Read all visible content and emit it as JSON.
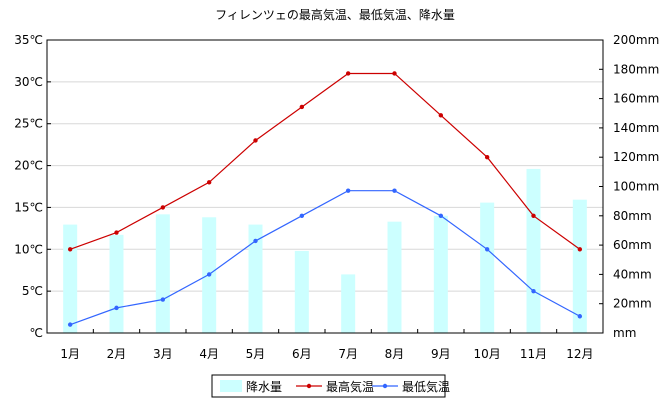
{
  "chart_data": {
    "type": "bar+line",
    "title": "フィレンツェの最高気温、最低気温、降水量",
    "categories": [
      "1月",
      "2月",
      "3月",
      "4月",
      "5月",
      "6月",
      "7月",
      "8月",
      "9月",
      "10月",
      "11月",
      "12月"
    ],
    "series": [
      {
        "name": "降水量",
        "type": "bar",
        "axis": "right",
        "unit": "mm",
        "color": "#ccffff",
        "values": [
          74,
          67,
          81,
          79,
          74,
          56,
          40,
          76,
          80,
          89,
          112,
          91
        ]
      },
      {
        "name": "最高気温",
        "type": "line",
        "axis": "left",
        "unit": "℃",
        "color": "#cc0000",
        "values": [
          10,
          12,
          15,
          18,
          23,
          27,
          31,
          31,
          26,
          21,
          14,
          10
        ]
      },
      {
        "name": "最低気温",
        "type": "line",
        "axis": "left",
        "unit": "℃",
        "color": "#3366ff",
        "values": [
          1,
          3,
          4,
          7,
          11,
          14,
          17,
          17,
          14,
          10,
          5,
          2
        ]
      }
    ],
    "y_left": {
      "ylim": [
        0,
        35
      ],
      "ticks": [
        0,
        5,
        10,
        15,
        20,
        25,
        30,
        35
      ],
      "tick_labels": [
        "℃",
        "5℃",
        "10℃",
        "15℃",
        "20℃",
        "25℃",
        "30℃",
        "35℃"
      ]
    },
    "y_right": {
      "ylim": [
        0,
        200
      ],
      "ticks": [
        0,
        20,
        40,
        60,
        80,
        100,
        120,
        140,
        160,
        180,
        200
      ],
      "tick_labels": [
        "mm",
        "20mm",
        "40mm",
        "60mm",
        "80mm",
        "100mm",
        "120mm",
        "140mm",
        "160mm",
        "180mm",
        "200mm"
      ]
    },
    "grid": "horizontal",
    "legend_position": "bottom"
  }
}
